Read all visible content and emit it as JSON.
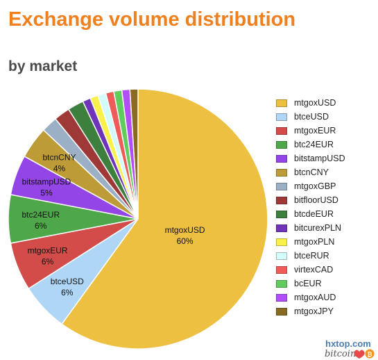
{
  "chart_data": {
    "type": "pie",
    "title": "Exchange volume distribution",
    "subtitle": "by market",
    "legend_position": "right",
    "slices": [
      {
        "label": "mtgoxUSD",
        "value": 60,
        "color": "#eec042",
        "slice_label": "mtgoxUSD",
        "pct_label": "60%"
      },
      {
        "label": "btceUSD",
        "value": 6,
        "color": "#b0d6f5",
        "slice_label": "btceUSD",
        "pct_label": "6%"
      },
      {
        "label": "mtgoxEUR",
        "value": 6,
        "color": "#d24c4a",
        "slice_label": "mtgoxEUR",
        "pct_label": "6%"
      },
      {
        "label": "btc24EUR",
        "value": 6,
        "color": "#4ea84a",
        "slice_label": "btc24EUR",
        "pct_label": "6%"
      },
      {
        "label": "bitstampUSD",
        "value": 5,
        "color": "#9345e6",
        "slice_label": "bitstampUSD",
        "pct_label": "5%"
      },
      {
        "label": "btcnCNY",
        "value": 4,
        "color": "#bd9c38",
        "slice_label": "btcnCNY",
        "pct_label": "4%"
      },
      {
        "label": "mtgoxGBP",
        "value": 2,
        "color": "#9bb0c5",
        "slice_label": "",
        "pct_label": ""
      },
      {
        "label": "bitfloorUSD",
        "value": 2,
        "color": "#9e3938",
        "slice_label": "",
        "pct_label": ""
      },
      {
        "label": "btcdeEUR",
        "value": 2,
        "color": "#3d7f3c",
        "slice_label": "",
        "pct_label": ""
      },
      {
        "label": "bitcurexPLN",
        "value": 1,
        "color": "#7034bb",
        "slice_label": "",
        "pct_label": ""
      },
      {
        "label": "mtgoxPLN",
        "value": 1,
        "color": "#faf04c",
        "slice_label": "",
        "pct_label": ""
      },
      {
        "label": "btceRUR",
        "value": 1,
        "color": "#d3fbfb",
        "slice_label": "",
        "pct_label": ""
      },
      {
        "label": "virtexCAD",
        "value": 1,
        "color": "#ee5b59",
        "slice_label": "",
        "pct_label": ""
      },
      {
        "label": "bcEUR",
        "value": 1,
        "color": "#5fcc5c",
        "slice_label": "",
        "pct_label": ""
      },
      {
        "label": "mtgoxAUD",
        "value": 1,
        "color": "#b14ef5",
        "slice_label": "",
        "pct_label": ""
      },
      {
        "label": "mtgoxJPY",
        "value": 1,
        "color": "#896a21",
        "slice_label": "",
        "pct_label": ""
      }
    ]
  },
  "branding": {
    "site": "hxtop.com",
    "logo_text": "bitcoin",
    "accent_color": "#f07f1e"
  }
}
